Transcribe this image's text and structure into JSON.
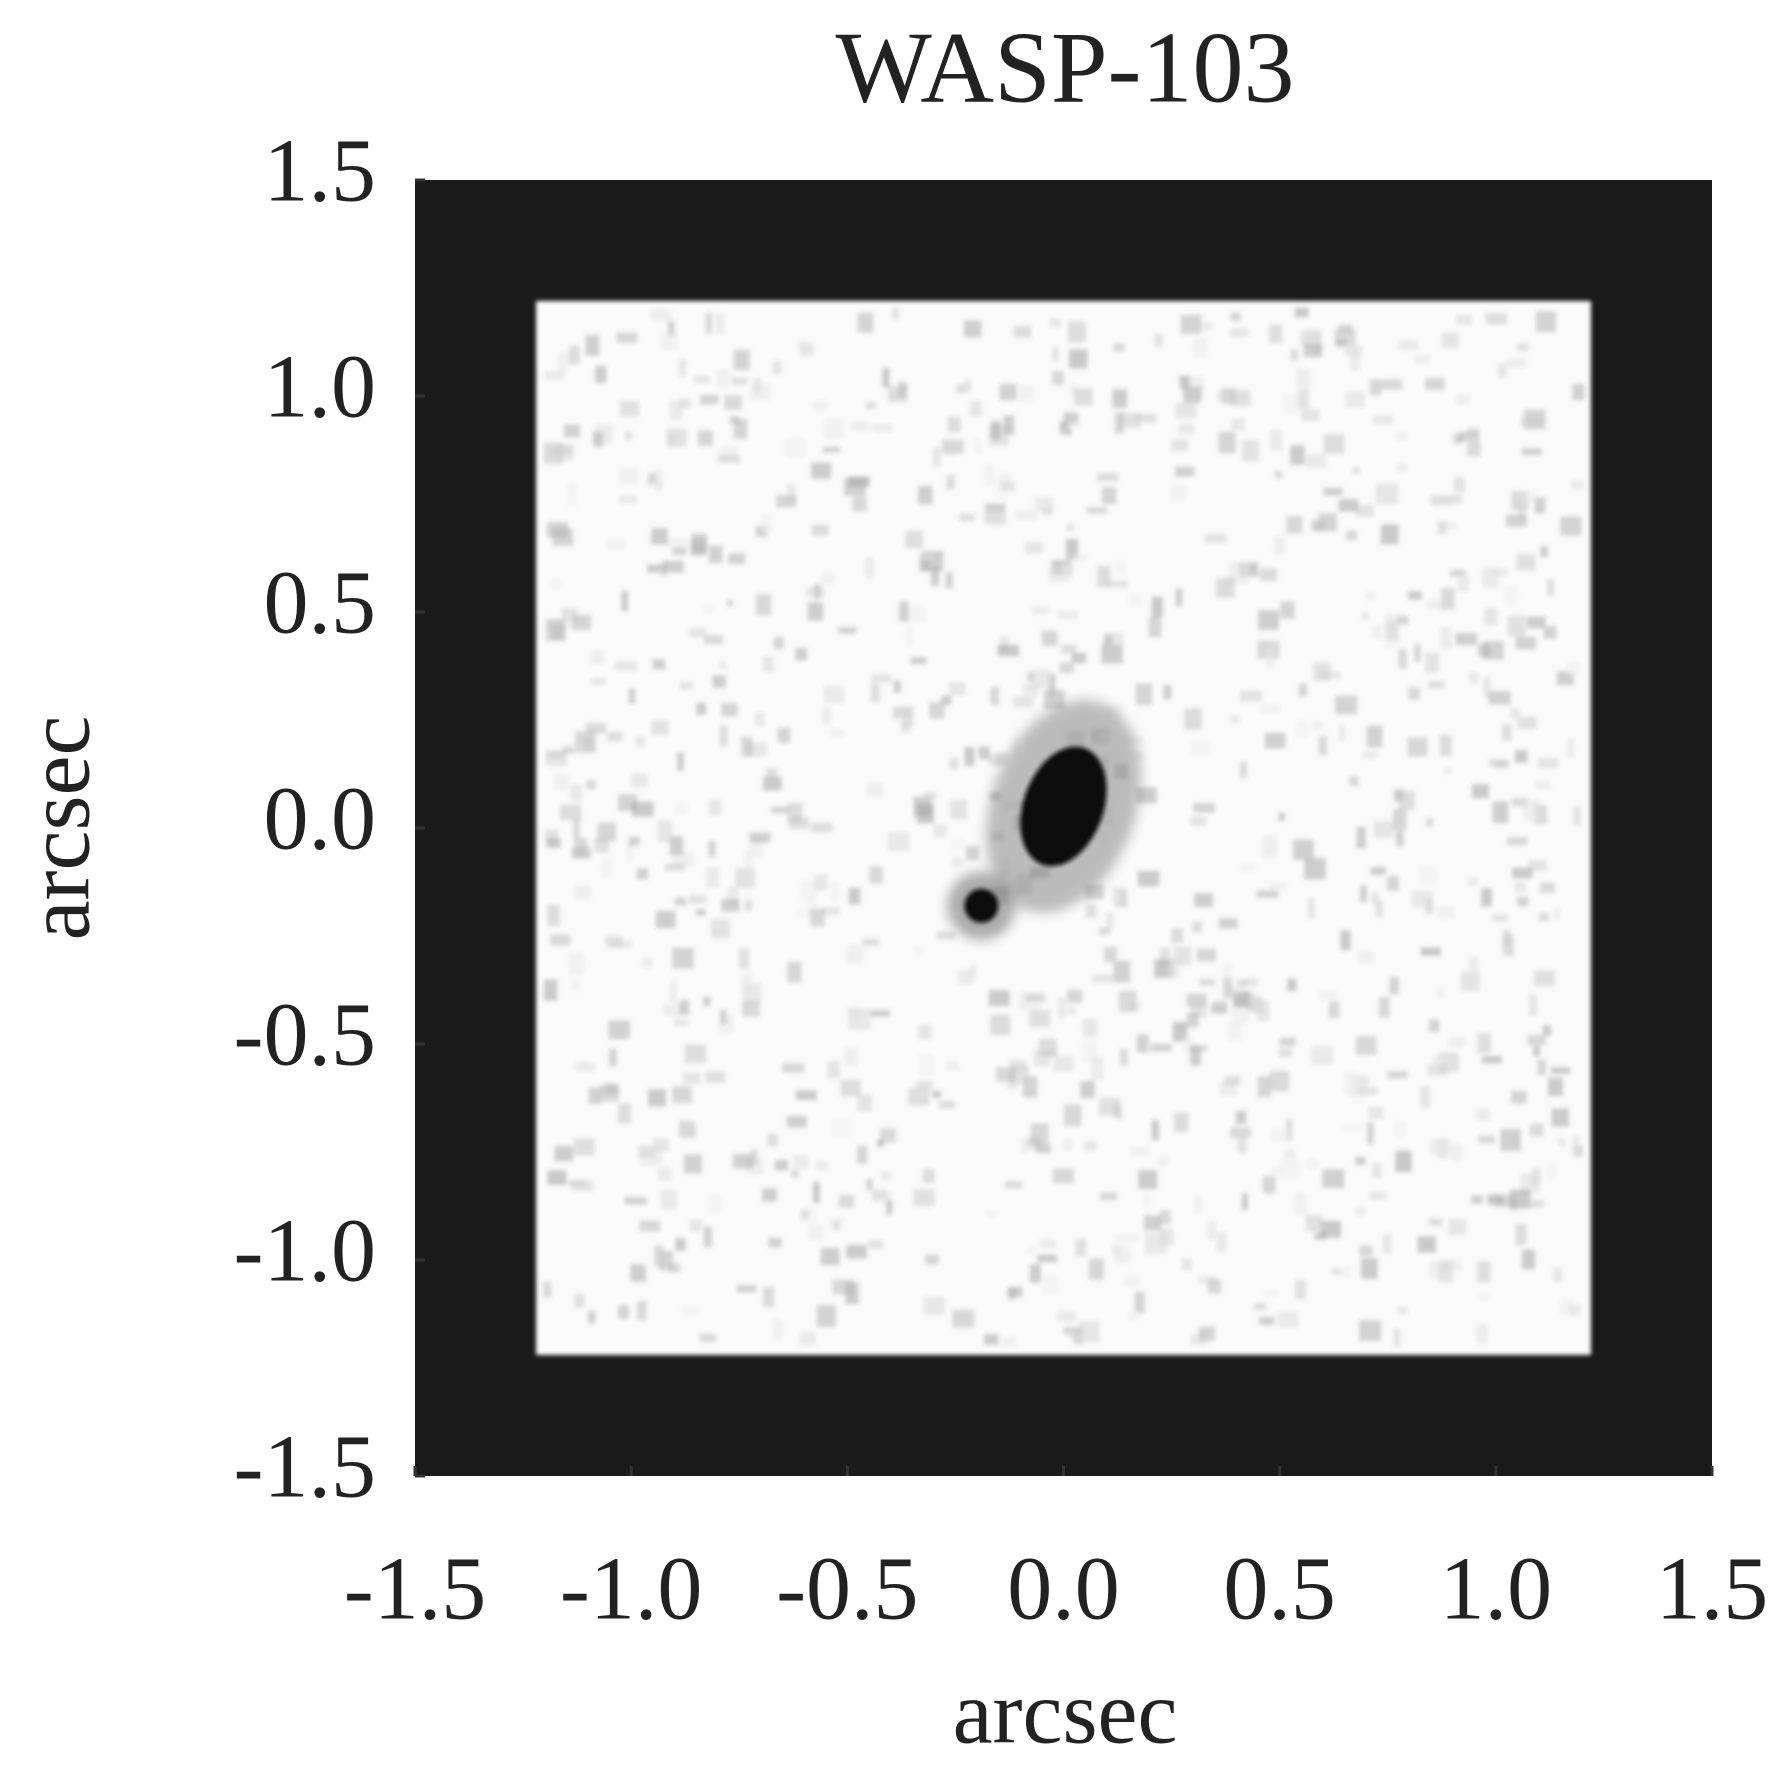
{
  "chart_data": {
    "type": "image",
    "title": "WASP-103",
    "xlabel": "arcsec",
    "ylabel": "arcsec",
    "xlim": [
      -1.5,
      1.5
    ],
    "ylim": [
      -1.5,
      1.5
    ],
    "xticks": [
      -1.5,
      {
        "value": -1,
        "label": "-1.0"
      },
      -0.5,
      {
        "value": 0,
        "label": "0.0"
      },
      0.5,
      {
        "value": 1,
        "label": "1.0"
      },
      1.5
    ],
    "yticks": [
      -1.5,
      {
        "value": -1,
        "label": "-1.0"
      },
      -0.5,
      {
        "value": 0,
        "label": "0.0"
      },
      0.5,
      {
        "value": 1,
        "label": "1.0"
      },
      1.5
    ],
    "image_extent": [
      -1.22,
      1.22
    ],
    "sources": [
      {
        "x": 0,
        "y": 0.05
      },
      {
        "x": -0.19,
        "y": -0.18
      }
    ],
    "frame_color": "#1a1a1a",
    "background_color": "#fafafa"
  }
}
